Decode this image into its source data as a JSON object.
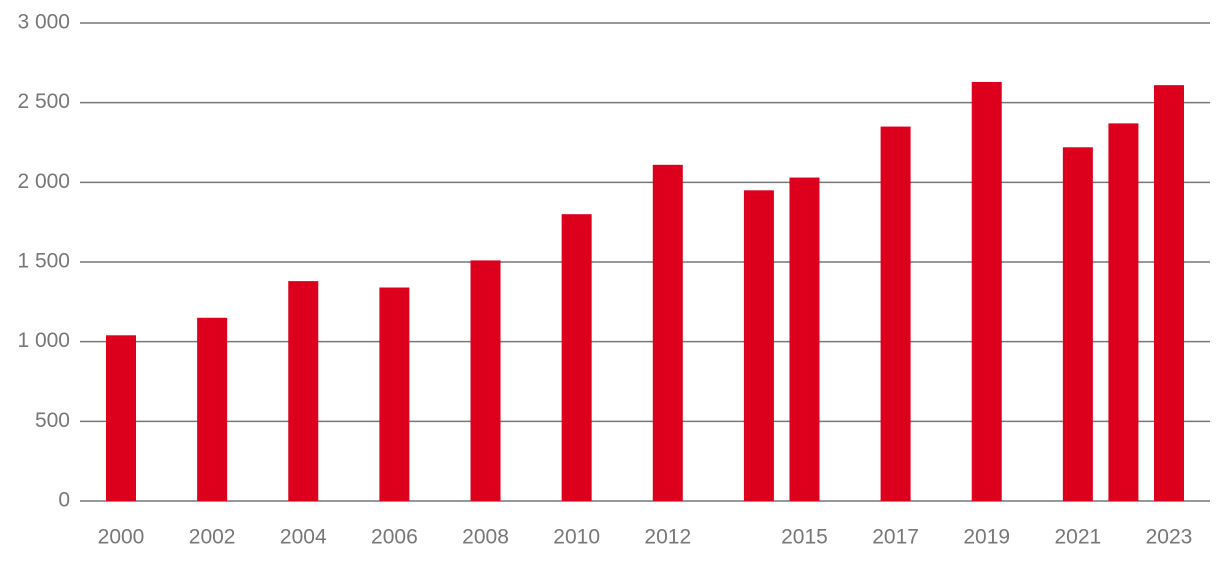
{
  "chart_data": {
    "type": "bar",
    "x": [
      2000,
      2002,
      2004,
      2006,
      2008,
      2010,
      2012,
      2014,
      2015,
      2017,
      2019,
      2021,
      2022,
      2023
    ],
    "values": [
      1040,
      1150,
      1380,
      1340,
      1510,
      1800,
      2110,
      1950,
      2030,
      2350,
      2630,
      2220,
      2370,
      2610
    ],
    "color": "#dc001c",
    "xlim": [
      1999.1,
      2023.9
    ],
    "xticks": [
      2000,
      2002,
      2004,
      2006,
      2008,
      2010,
      2012,
      2015,
      2017,
      2019,
      2021,
      2023
    ],
    "ylim": [
      0,
      3000
    ],
    "yticks": [
      0,
      500,
      {
        "value": 1000,
        "label": "1 000"
      },
      {
        "value": 1500,
        "label": "1 500"
      },
      {
        "value": 2000,
        "label": "2 000"
      },
      {
        "value": 2500,
        "label": "2 500"
      },
      {
        "value": 3000,
        "label": "3 000"
      }
    ],
    "grid": true
  }
}
